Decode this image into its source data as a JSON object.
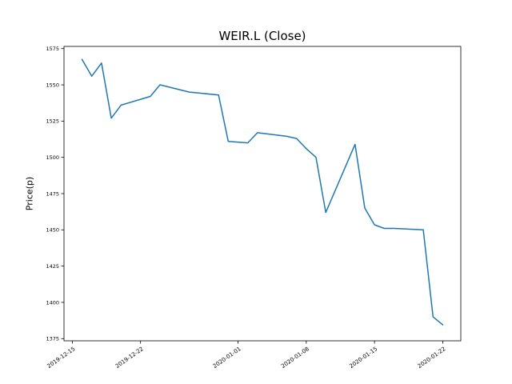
{
  "figure": {
    "title": "WEIR.L (Close)",
    "ylabel": "Price(p)"
  },
  "chart_data": {
    "type": "line",
    "title": "WEIR.L (Close)",
    "xlabel": "",
    "ylabel": "Price(p)",
    "line_color": "#1f77b4",
    "grid": false,
    "legend": "none",
    "x": [
      "2019-12-16",
      "2019-12-17",
      "2019-12-18",
      "2019-12-19",
      "2019-12-20",
      "2019-12-23",
      "2019-12-24",
      "2019-12-27",
      "2019-12-30",
      "2019-12-31",
      "2020-01-02",
      "2020-01-03",
      "2020-01-06",
      "2020-01-07",
      "2020-01-08",
      "2020-01-09",
      "2020-01-10",
      "2020-01-13",
      "2020-01-14",
      "2020-01-15",
      "2020-01-16",
      "2020-01-17",
      "2020-01-20",
      "2020-01-21",
      "2020-01-22"
    ],
    "values": [
      1567.5,
      1556,
      1565,
      1527,
      1536,
      1542,
      1550,
      1545,
      1543,
      1511,
      1510,
      1517,
      1514.5,
      1513,
      1506,
      1500,
      1462,
      1509,
      1465,
      1453.5,
      1451,
      1451,
      1450,
      1390,
      1384.5
    ],
    "ylim": [
      1373.5,
      1576.5
    ],
    "yticks": [
      1375,
      1400,
      1425,
      1450,
      1475,
      1500,
      1525,
      1550,
      1575
    ],
    "xticks": [
      "2019-12-15",
      "2019-12-22",
      "2020-01-01",
      "2020-01-08",
      "2020-01-15",
      "2020-01-22"
    ]
  }
}
